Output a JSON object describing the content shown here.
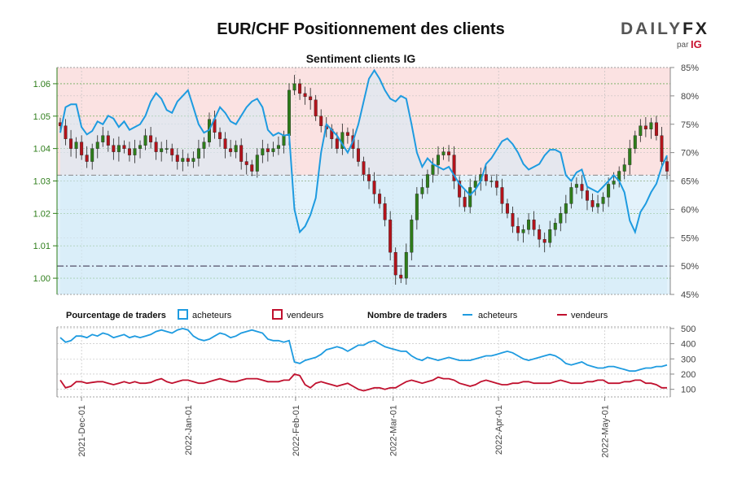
{
  "header": {
    "title": "EUR/CHF Positionnement des clients",
    "brand_daily": "DAILY",
    "brand_fx": "FX",
    "brand_par": "par",
    "brand_ig": "IG"
  },
  "colors": {
    "buyers": "#1e9be0",
    "sellers": "#c0102e",
    "candle_up": "#2e7d1a",
    "candle_down": "#b3131b",
    "bg_upper": "#fbe2e2",
    "bg_lower": "#e3f2fb",
    "left_axis": "#2e7d1a",
    "grid": "#6fae5c"
  },
  "chart_data": [
    {
      "type": "candlestick",
      "title": "Sentiment clients IG",
      "x_ticks": [
        "2021-Dec-01",
        "2022-Jan-01",
        "2022-Feb-01",
        "2022-Mar-01",
        "2022-Apr-01",
        "2022-May-01"
      ],
      "y_left": {
        "ticks": [
          "1.00",
          "1.01",
          "1.02",
          "1.03",
          "1.04",
          "1.05",
          "1.06"
        ],
        "lim": [
          0.995,
          1.065
        ]
      },
      "y_right": {
        "ticks": [
          "45%",
          "50%",
          "55%",
          "60%",
          "65%",
          "70%",
          "75%",
          "80%",
          "85%"
        ],
        "lim": [
          45,
          85
        ]
      },
      "reference_lines": {
        "price": 1.0318,
        "percent": 50
      },
      "price_close": [
        1.047,
        1.043,
        1.04,
        1.042,
        1.038,
        1.036,
        1.04,
        1.042,
        1.044,
        1.041,
        1.039,
        1.041,
        1.04,
        1.038,
        1.04,
        1.041,
        1.044,
        1.042,
        1.039,
        1.04,
        1.04,
        1.038,
        1.036,
        1.037,
        1.036,
        1.037,
        1.04,
        1.042,
        1.049,
        1.045,
        1.043,
        1.04,
        1.039,
        1.041,
        1.036,
        1.035,
        1.033,
        1.038,
        1.04,
        1.039,
        1.04,
        1.041,
        1.044,
        1.058,
        1.06,
        1.057,
        1.056,
        1.055,
        1.05,
        1.047,
        1.046,
        1.043,
        1.04,
        1.045,
        1.044,
        1.04,
        1.036,
        1.032,
        1.03,
        1.026,
        1.023,
        1.018,
        1.008,
        1.001,
        1.0,
        1.008,
        1.018,
        1.026,
        1.028,
        1.032,
        1.035,
        1.038,
        1.039,
        1.038,
        1.03,
        1.025,
        1.022,
        1.028,
        1.03,
        1.032,
        1.03,
        1.03,
        1.028,
        1.023,
        1.02,
        1.016,
        1.014,
        1.015,
        1.018,
        1.015,
        1.012,
        1.011,
        1.015,
        1.017,
        1.02,
        1.023,
        1.028,
        1.029,
        1.027,
        1.024,
        1.022,
        1.023,
        1.025,
        1.029,
        1.03,
        1.033,
        1.035,
        1.04,
        1.044,
        1.047,
        1.046,
        1.048,
        1.044,
        1.036,
        1.033
      ],
      "buyers_pct": [
        73.5,
        78.0,
        78.5,
        78.5,
        74.5,
        73.2,
        73.8,
        75.5,
        75.0,
        76.5,
        76.0,
        74.5,
        75.5,
        74.0,
        74.5,
        75.0,
        76.5,
        79.0,
        80.5,
        79.5,
        77.5,
        77.0,
        79.0,
        80.0,
        81.0,
        78.0,
        75.0,
        73.5,
        74.0,
        76.0,
        78.0,
        77.0,
        75.5,
        75.0,
        76.5,
        78.0,
        79.0,
        79.5,
        78.0,
        74.0,
        73.0,
        73.5,
        73.0,
        73.2,
        60.0,
        56.0,
        57.0,
        59.0,
        62.0,
        70.0,
        75.0,
        74.0,
        73.0,
        71.5,
        70.0,
        72.0,
        75.0,
        79.0,
        83.0,
        84.5,
        83.0,
        81.0,
        79.5,
        79.0,
        80.0,
        79.5,
        75.0,
        70.0,
        67.5,
        69.0,
        68.0,
        67.5,
        67.0,
        67.5,
        66.0,
        64.5,
        63.5,
        62.5,
        63.5,
        65.0,
        68.0,
        69.0,
        70.5,
        72.0,
        72.5,
        71.5,
        70.0,
        68.0,
        67.0,
        67.5,
        68.0,
        69.5,
        70.5,
        70.5,
        70.0,
        66.0,
        65.0,
        66.5,
        67.0,
        64.0,
        63.5,
        63.0,
        64.0,
        65.0,
        66.0,
        65.0,
        63.0,
        58.0,
        56.0,
        59.5,
        61.0,
        63.0,
        64.5,
        67.5,
        69.5
      ],
      "legend": {
        "pct_label": "Pourcentage de traders",
        "count_label": "Nombre de traders",
        "buyers": "acheteurs",
        "sellers": "vendeurs"
      }
    },
    {
      "type": "line",
      "y_ticks": [
        "100",
        "200",
        "300",
        "400",
        "500"
      ],
      "ylim": [
        50,
        510
      ],
      "series": [
        {
          "name": "acheteurs",
          "values": [
            440,
            410,
            420,
            450,
            450,
            440,
            460,
            450,
            470,
            460,
            440,
            450,
            460,
            440,
            450,
            440,
            450,
            460,
            480,
            490,
            480,
            470,
            490,
            500,
            490,
            450,
            430,
            420,
            430,
            450,
            470,
            460,
            440,
            450,
            470,
            480,
            490,
            480,
            470,
            430,
            420,
            420,
            410,
            420,
            280,
            270,
            290,
            300,
            310,
            330,
            360,
            370,
            380,
            370,
            350,
            370,
            390,
            390,
            410,
            420,
            400,
            380,
            370,
            360,
            350,
            350,
            320,
            300,
            290,
            310,
            300,
            290,
            300,
            310,
            300,
            290,
            290,
            290,
            300,
            310,
            320,
            320,
            330,
            340,
            350,
            340,
            320,
            300,
            290,
            300,
            310,
            320,
            330,
            320,
            300,
            270,
            260,
            270,
            280,
            260,
            250,
            240,
            240,
            250,
            250,
            240,
            230,
            220,
            220,
            230,
            240,
            240,
            250,
            250,
            260
          ]
        },
        {
          "name": "vendeurs",
          "values": [
            160,
            110,
            120,
            150,
            150,
            140,
            145,
            150,
            150,
            140,
            130,
            140,
            150,
            140,
            150,
            140,
            140,
            145,
            160,
            170,
            150,
            140,
            150,
            160,
            160,
            150,
            140,
            140,
            150,
            160,
            170,
            160,
            150,
            150,
            160,
            170,
            170,
            170,
            160,
            150,
            150,
            150,
            160,
            160,
            200,
            190,
            130,
            110,
            140,
            150,
            140,
            130,
            120,
            130,
            140,
            120,
            100,
            90,
            100,
            110,
            110,
            100,
            110,
            110,
            130,
            150,
            160,
            150,
            140,
            150,
            160,
            180,
            170,
            170,
            160,
            140,
            130,
            120,
            130,
            150,
            160,
            150,
            140,
            130,
            130,
            140,
            140,
            150,
            150,
            140,
            140,
            140,
            140,
            150,
            160,
            150,
            140,
            140,
            140,
            150,
            150,
            160,
            160,
            140,
            140,
            140,
            150,
            150,
            160,
            160,
            140,
            140,
            130,
            110,
            110
          ]
        }
      ]
    }
  ]
}
